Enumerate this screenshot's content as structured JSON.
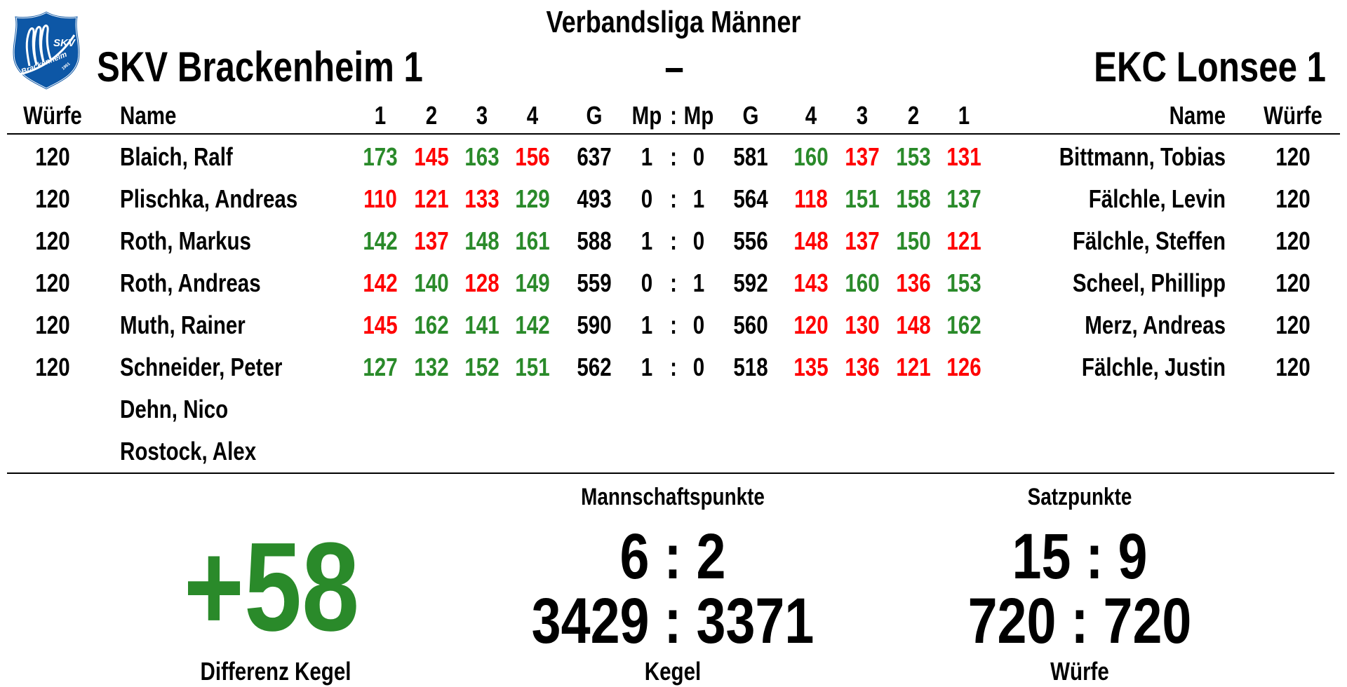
{
  "header": {
    "league": "Verbandsliga Männer",
    "home_team": "SKV Brackenheim 1",
    "separator": "–",
    "away_team": "EKC Lonsee 1",
    "logo_text": "SKV Brackenheim 1961"
  },
  "columns": {
    "home_throws": "Würfe",
    "home_name": "Name",
    "home_sets": [
      "1",
      "2",
      "3",
      "4"
    ],
    "home_total": "G",
    "mp_home": "Mp",
    "mp_sep": ":",
    "mp_away": "Mp",
    "away_total": "G",
    "away_sets": [
      "4",
      "3",
      "2",
      "1"
    ],
    "away_name": "Name",
    "away_throws": "Würfe"
  },
  "colors": {
    "green": "#2a8a2a",
    "red": "#ff0000"
  },
  "rows": [
    {
      "home_throws": "120",
      "home_name": "Blaich, Ralf",
      "home_sets": [
        "173",
        "145",
        "163",
        "156"
      ],
      "home_colors": [
        "green",
        "red",
        "green",
        "red"
      ],
      "home_total": "637",
      "mp_home": "1",
      "mp_away": "0",
      "away_total": "581",
      "away_sets": [
        "160",
        "137",
        "153",
        "131"
      ],
      "away_colors": [
        "green",
        "red",
        "green",
        "red"
      ],
      "away_name": "Bittmann, Tobias",
      "away_throws": "120"
    },
    {
      "home_throws": "120",
      "home_name": "Plischka, Andreas",
      "home_sets": [
        "110",
        "121",
        "133",
        "129"
      ],
      "home_colors": [
        "red",
        "red",
        "red",
        "green"
      ],
      "home_total": "493",
      "mp_home": "0",
      "mp_away": "1",
      "away_total": "564",
      "away_sets": [
        "118",
        "151",
        "158",
        "137"
      ],
      "away_colors": [
        "red",
        "green",
        "green",
        "green"
      ],
      "away_name": "Fälchle, Levin",
      "away_throws": "120"
    },
    {
      "home_throws": "120",
      "home_name": "Roth, Markus",
      "home_sets": [
        "142",
        "137",
        "148",
        "161"
      ],
      "home_colors": [
        "green",
        "red",
        "green",
        "green"
      ],
      "home_total": "588",
      "mp_home": "1",
      "mp_away": "0",
      "away_total": "556",
      "away_sets": [
        "148",
        "137",
        "150",
        "121"
      ],
      "away_colors": [
        "red",
        "red",
        "green",
        "red"
      ],
      "away_name": "Fälchle, Steffen",
      "away_throws": "120"
    },
    {
      "home_throws": "120",
      "home_name": "Roth, Andreas",
      "home_sets": [
        "142",
        "140",
        "128",
        "149"
      ],
      "home_colors": [
        "red",
        "green",
        "red",
        "green"
      ],
      "home_total": "559",
      "mp_home": "0",
      "mp_away": "1",
      "away_total": "592",
      "away_sets": [
        "143",
        "160",
        "136",
        "153"
      ],
      "away_colors": [
        "red",
        "green",
        "red",
        "green"
      ],
      "away_name": "Scheel, Phillipp",
      "away_throws": "120"
    },
    {
      "home_throws": "120",
      "home_name": "Muth, Rainer",
      "home_sets": [
        "145",
        "162",
        "141",
        "142"
      ],
      "home_colors": [
        "red",
        "green",
        "green",
        "green"
      ],
      "home_total": "590",
      "mp_home": "1",
      "mp_away": "0",
      "away_total": "560",
      "away_sets": [
        "120",
        "130",
        "148",
        "162"
      ],
      "away_colors": [
        "red",
        "red",
        "red",
        "green"
      ],
      "away_name": "Merz, Andreas",
      "away_throws": "120"
    },
    {
      "home_throws": "120",
      "home_name": "Schneider, Peter",
      "home_sets": [
        "127",
        "132",
        "152",
        "151"
      ],
      "home_colors": [
        "green",
        "green",
        "green",
        "green"
      ],
      "home_total": "562",
      "mp_home": "1",
      "mp_away": "0",
      "away_total": "518",
      "away_sets": [
        "135",
        "136",
        "121",
        "126"
      ],
      "away_colors": [
        "red",
        "red",
        "red",
        "red"
      ],
      "away_name": "Fälchle, Justin",
      "away_throws": "120"
    }
  ],
  "substitutes": [
    "Dehn, Nico",
    "Rostock, Alex"
  ],
  "summary": {
    "difference": "+58",
    "difference_label": "Differenz Kegel",
    "team_points_label": "Mannschaftspunkte",
    "team_points": "6 : 2",
    "pins": "3429 : 3371",
    "pins_label": "Kegel",
    "set_points_label": "Satzpunkte",
    "set_points": "15 : 9",
    "throws": "720 : 720",
    "throws_label": "Würfe"
  }
}
